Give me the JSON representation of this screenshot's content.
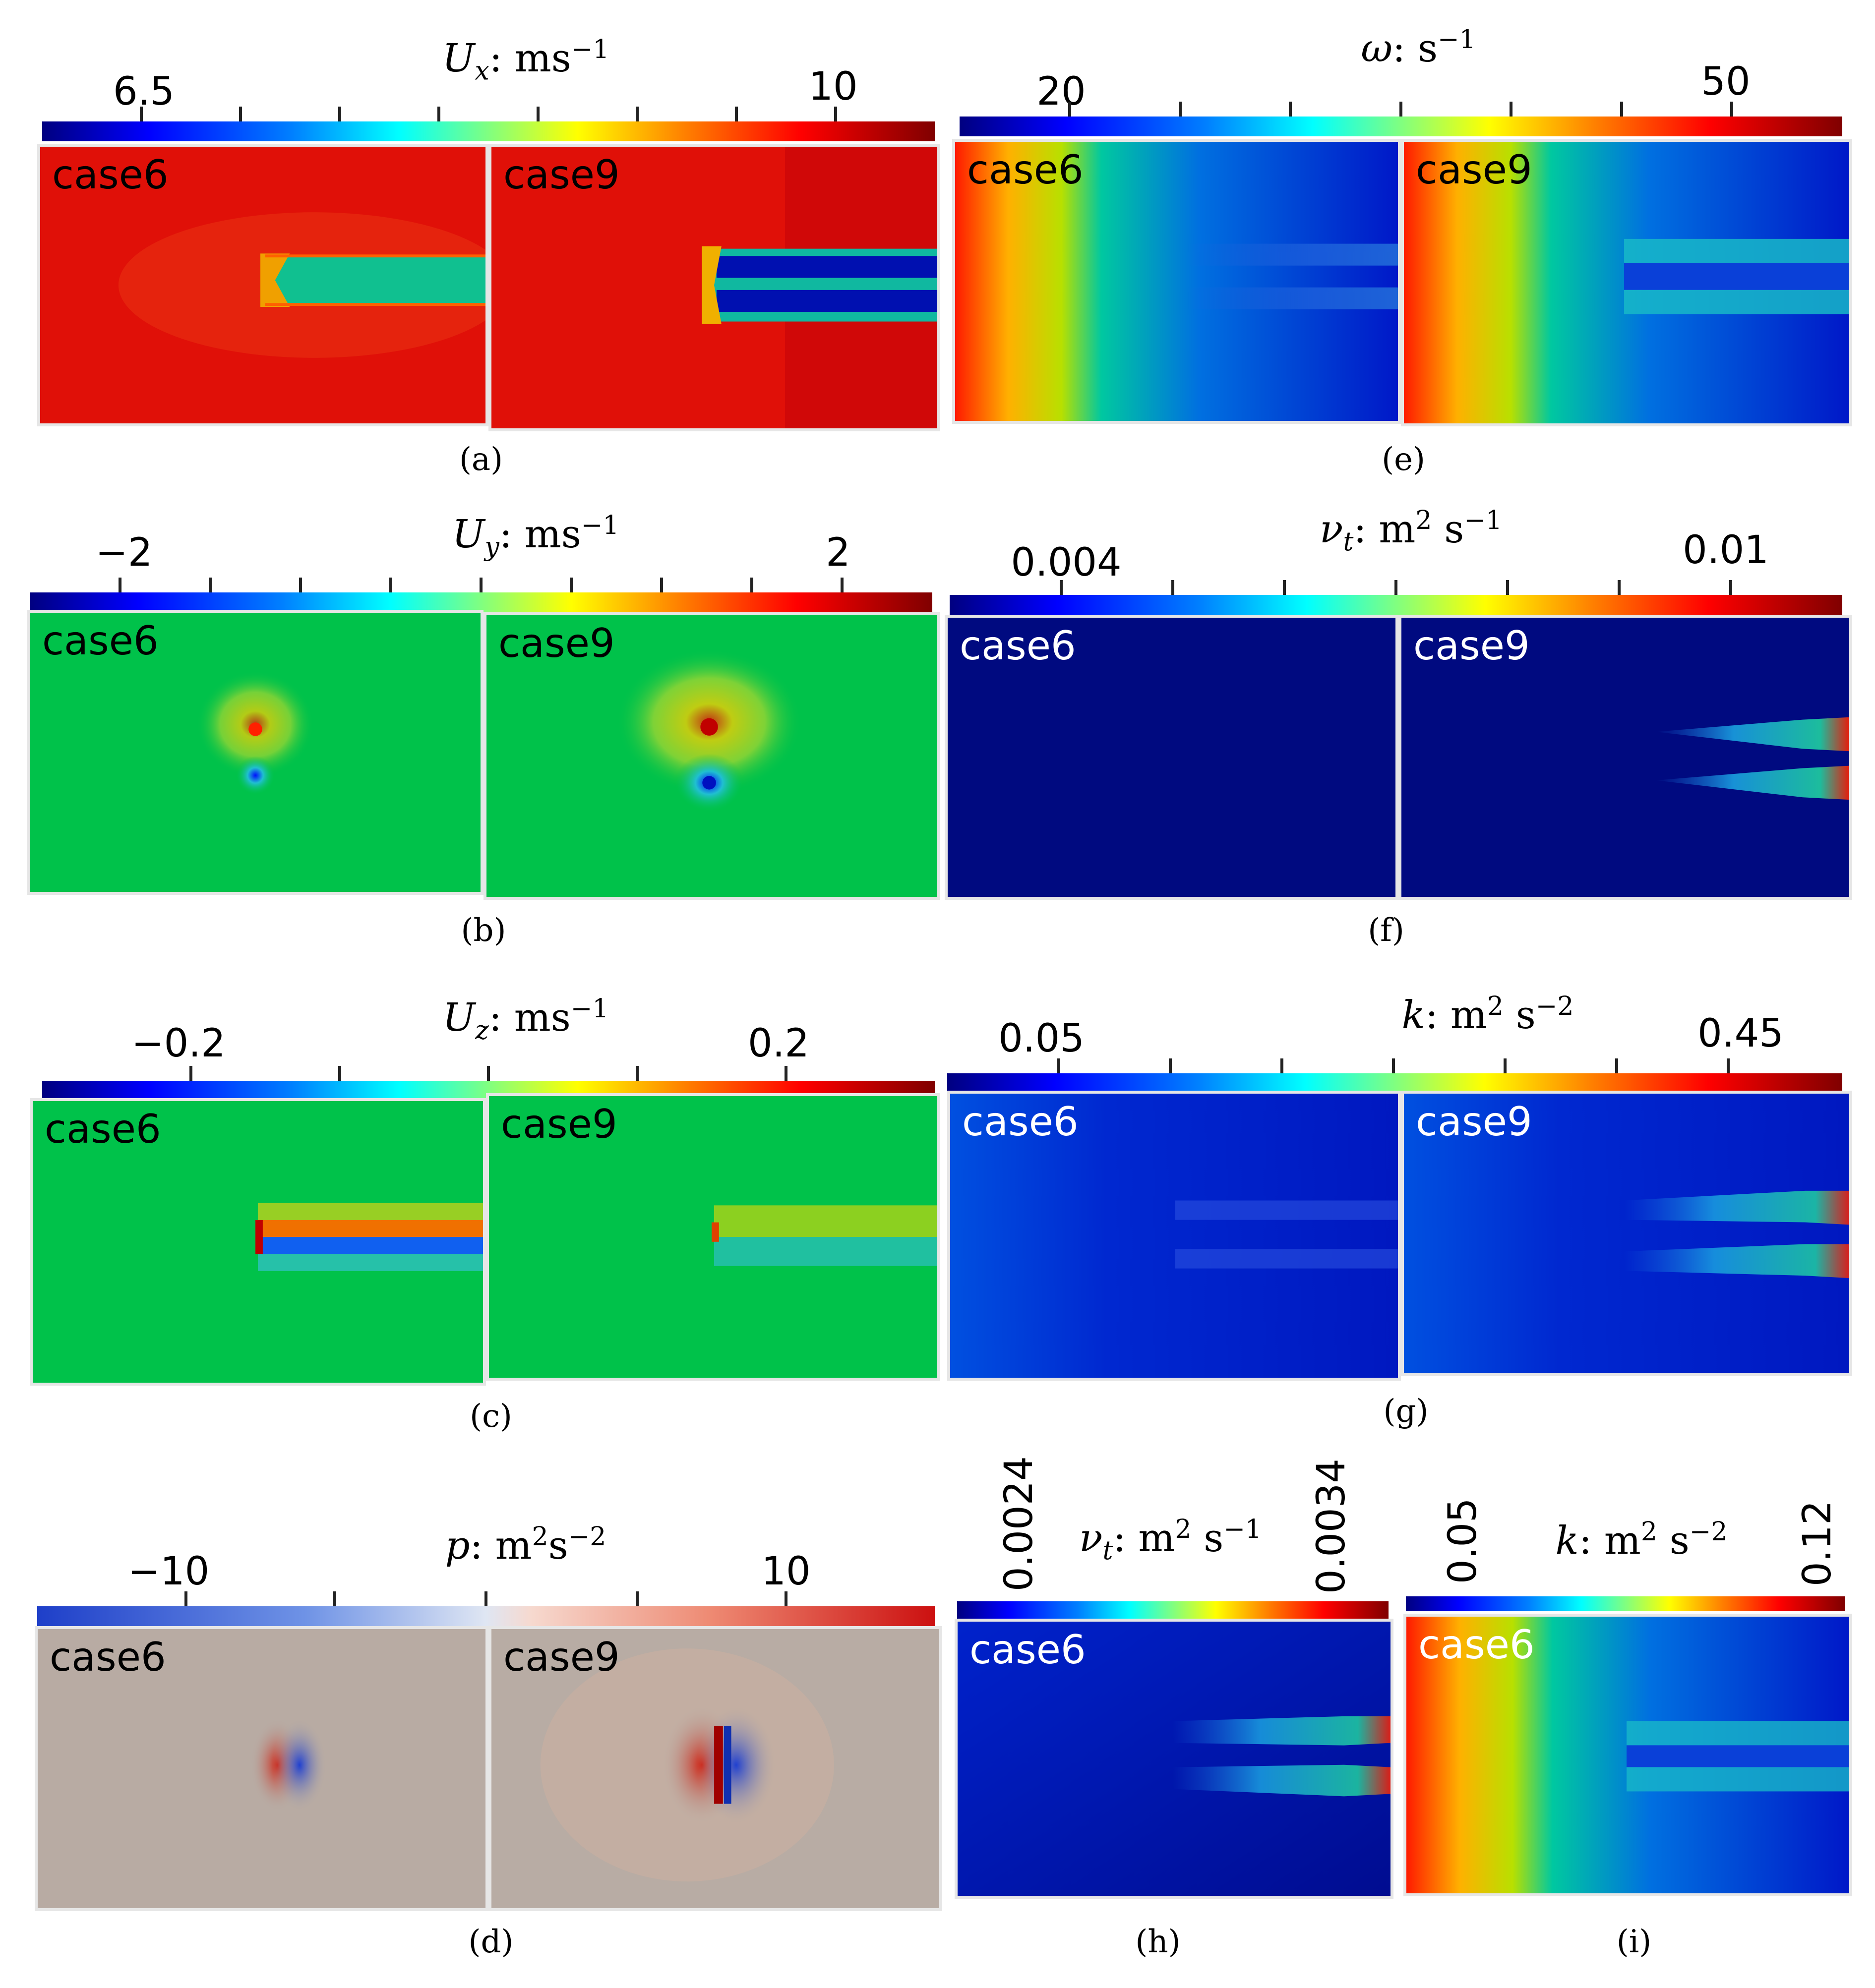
{
  "captions": [
    "(a)",
    "(b)",
    "(c)",
    "(d)",
    "(e)",
    "(f)",
    "(g)",
    "(h)",
    "(i)"
  ],
  "case_labels": {
    "left": "case6",
    "right": "case9"
  },
  "colorbars": {
    "a": {
      "quantity": "U",
      "sub": "x",
      "unit": ": ms",
      "exp": "−1",
      "tick_min": "6.5",
      "tick_max": "10"
    },
    "b": {
      "quantity": "U",
      "sub": "y",
      "unit": ": ms",
      "exp": "−1",
      "tick_min": "−2",
      "tick_max": "2"
    },
    "c": {
      "quantity": "U",
      "sub": "z",
      "unit": ": ms",
      "exp": "−1",
      "tick_min": "−0.2",
      "tick_max": "0.2"
    },
    "d": {
      "quantity": "p",
      "unit": ": m",
      "exp1": "2",
      "mid": "s",
      "exp": "−2",
      "tick_min": "−10",
      "tick_max": "10"
    },
    "e": {
      "quantity": "ω",
      "unit": ": s",
      "exp": "−1",
      "tick_min": "20",
      "tick_max": "50"
    },
    "f": {
      "quantity": "ν",
      "sub": "t",
      "unit": ": m",
      "exp1": "2",
      "mid": " s",
      "exp": "−1",
      "tick_min": "0.004",
      "tick_max": "0.01"
    },
    "g": {
      "quantity": "k",
      "unit": ": m",
      "exp1": "2",
      "mid": " s",
      "exp": "−2",
      "tick_min": "0.05",
      "tick_max": "0.45"
    },
    "h": {
      "quantity": "ν",
      "sub": "t",
      "unit": ": m",
      "exp1": "2",
      "mid": " s",
      "exp": "−1",
      "tick_min": "0.0024",
      "tick_max": "0.0034"
    },
    "i": {
      "quantity": "k",
      "unit": ": m",
      "exp1": "2",
      "mid": " s",
      "exp": "−2",
      "tick_min": "0.05",
      "tick_max": "0.12"
    }
  }
}
